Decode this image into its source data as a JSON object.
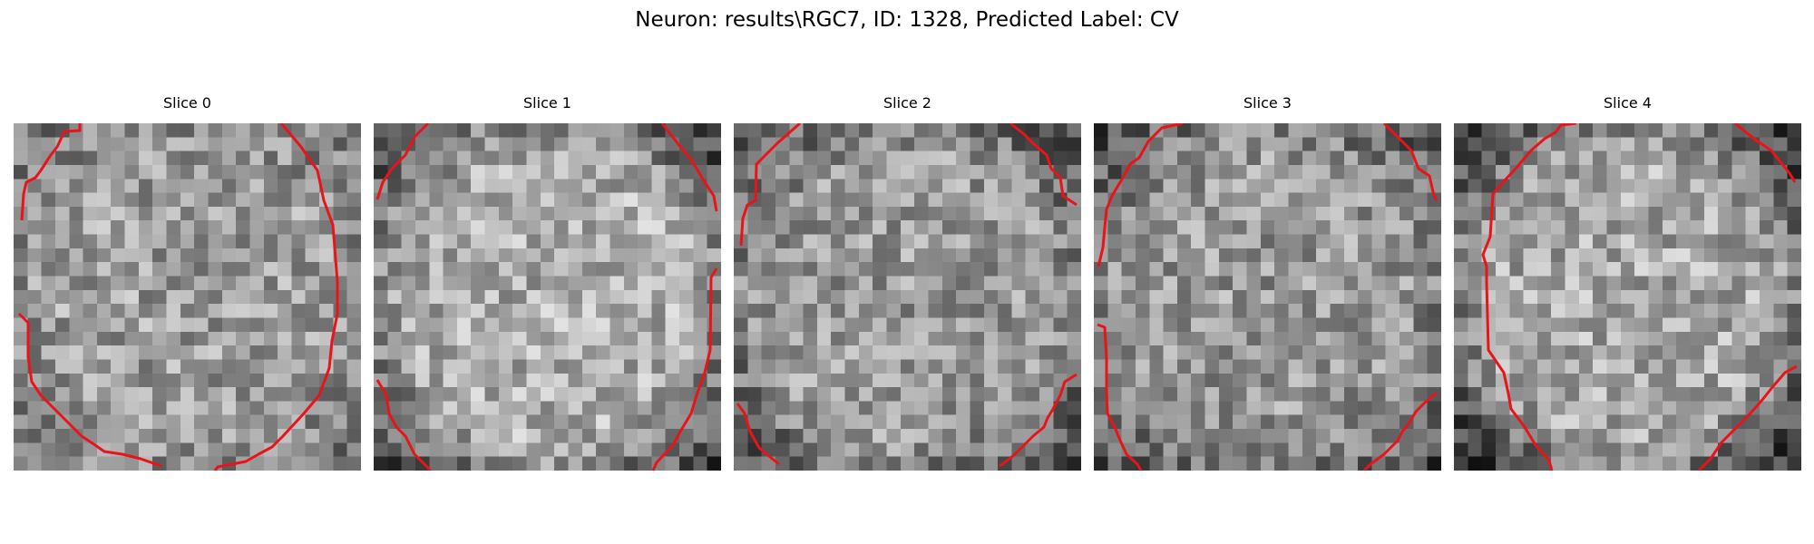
{
  "figure": {
    "title": "Neuron: results\\RGC7, ID: 1328, Predicted Label: CV"
  },
  "slices": [
    {
      "title": "Slice 0",
      "seed": 11,
      "center_brightness": 0.62,
      "edge_darkness": 0.15
    },
    {
      "title": "Slice 1",
      "seed": 23,
      "center_brightness": 0.68,
      "edge_darkness": 0.35
    },
    {
      "title": "Slice 2",
      "seed": 37,
      "center_brightness": 0.6,
      "edge_darkness": 0.25
    },
    {
      "title": "Slice 3",
      "seed": 41,
      "center_brightness": 0.6,
      "edge_darkness": 0.25
    },
    {
      "title": "Slice 4",
      "seed": 53,
      "center_brightness": 0.66,
      "edge_darkness": 0.4
    }
  ],
  "colors": {
    "contour": "#e8141a"
  }
}
